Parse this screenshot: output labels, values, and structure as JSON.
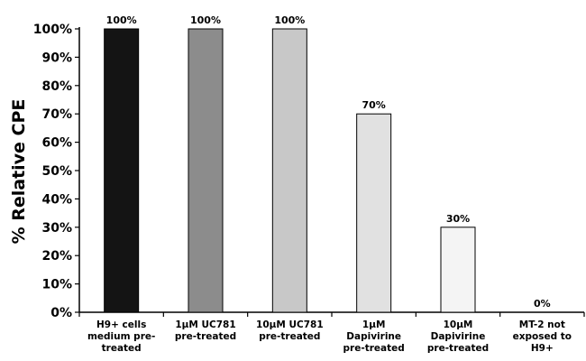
{
  "chart_data": {
    "type": "bar",
    "ylabel": "% Relative CPE",
    "xlabel": "",
    "ylim": [
      0,
      100
    ],
    "y_ticks": [
      0,
      10,
      20,
      30,
      40,
      50,
      60,
      70,
      80,
      90,
      100
    ],
    "y_tick_labels": [
      "0%",
      "10%",
      "20%",
      "30%",
      "40%",
      "50%",
      "60%",
      "70%",
      "80%",
      "90%",
      "100%"
    ],
    "categories": [
      "H9+ cells medium pre-treated",
      "1µM UC781 pre-treated",
      "10µM UC781 pre-treated",
      "1µM Dapivirine pre-treated",
      "10µM Dapivirine pre-treated",
      "MT-2 not exposed to H9+"
    ],
    "category_lines": [
      [
        "H9+ cells",
        "medium pre-",
        "treated"
      ],
      [
        "1µM UC781",
        "pre-treated"
      ],
      [
        "10µM UC781",
        "pre-treated"
      ],
      [
        "1µM",
        "Dapivirine",
        "pre-treated"
      ],
      [
        "10µM",
        "Dapivirine",
        "pre-treated"
      ],
      [
        "MT-2 not",
        "exposed to",
        "H9+"
      ]
    ],
    "values": [
      100,
      100,
      100,
      70,
      30,
      0
    ],
    "data_labels": [
      "100%",
      "100%",
      "100%",
      "70%",
      "30%",
      "0%"
    ],
    "bar_colors": [
      "#141414",
      "#8c8c8c",
      "#c8c8c8",
      "#e1e1e1",
      "#f4f4f4",
      "#ffffff"
    ],
    "grid": false,
    "legend": "none"
  }
}
